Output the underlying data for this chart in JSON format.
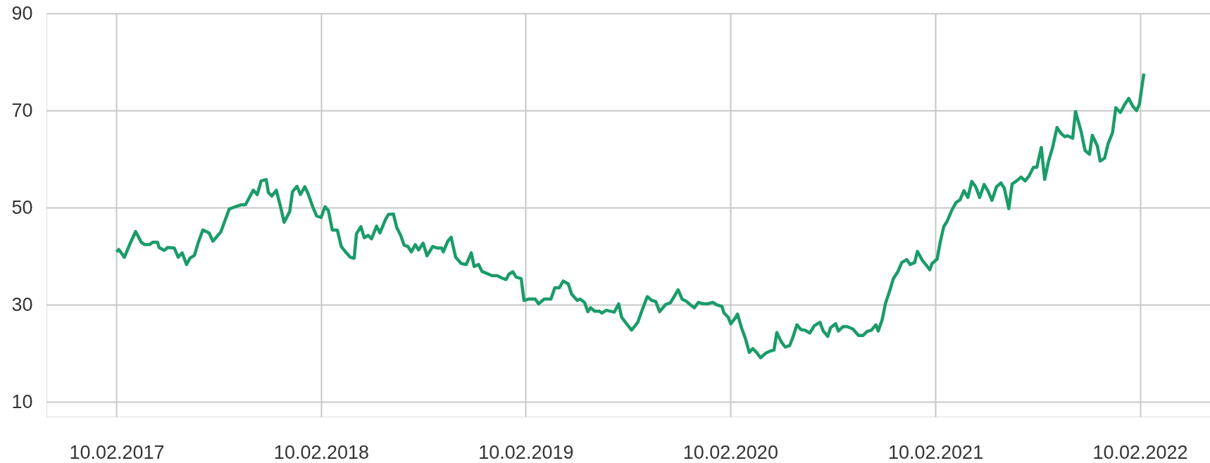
{
  "chart_data": {
    "type": "line",
    "xlim": [
      "2016-10-08",
      "2022-06-15"
    ],
    "xticks": [
      {
        "value": "2017-02-10",
        "label": "10.02.2017"
      },
      {
        "value": "2018-02-10",
        "label": "10.02.2018"
      },
      {
        "value": "2019-02-10",
        "label": "10.02.2019"
      },
      {
        "value": "2020-02-10",
        "label": "10.02.2020"
      },
      {
        "value": "2021-02-10",
        "label": "10.02.2021"
      },
      {
        "value": "2022-02-10",
        "label": "10.02.2022"
      }
    ],
    "ylim": [
      7,
      90
    ],
    "yticks": [
      10,
      30,
      50,
      70,
      90
    ],
    "grid": true,
    "line_style": "solid",
    "marker": "none",
    "x": [
      "2017-02-10",
      "2017-02-14",
      "2017-02-24",
      "2017-03-05",
      "2017-03-16",
      "2017-03-26",
      "2017-04-01",
      "2017-04-10",
      "2017-04-16",
      "2017-04-24",
      "2017-04-27",
      "2017-05-06",
      "2017-05-12",
      "2017-05-24",
      "2017-05-31",
      "2017-06-07",
      "2017-06-15",
      "2017-06-21",
      "2017-06-29",
      "2017-07-06",
      "2017-07-14",
      "2017-07-25",
      "2017-08-01",
      "2017-08-15",
      "2017-08-22",
      "2017-08-30",
      "2017-09-10",
      "2017-09-20",
      "2017-09-28",
      "2017-10-12",
      "2017-10-19",
      "2017-10-26",
      "2017-11-04",
      "2017-11-08",
      "2017-11-14",
      "2017-11-22",
      "2017-11-29",
      "2017-12-06",
      "2017-12-16",
      "2017-12-21",
      "2017-12-29",
      "2018-01-04",
      "2018-01-12",
      "2018-01-18",
      "2018-01-26",
      "2018-02-02",
      "2018-02-10",
      "2018-02-17",
      "2018-02-23",
      "2018-03-02",
      "2018-03-11",
      "2018-03-18",
      "2018-03-27",
      "2018-04-03",
      "2018-04-10",
      "2018-04-14",
      "2018-04-22",
      "2018-04-28",
      "2018-05-05",
      "2018-05-11",
      "2018-05-20",
      "2018-05-26",
      "2018-06-05",
      "2018-06-10",
      "2018-06-19",
      "2018-06-25",
      "2018-07-02",
      "2018-07-08",
      "2018-07-15",
      "2018-07-21",
      "2018-07-28",
      "2018-08-03",
      "2018-08-11",
      "2018-08-18",
      "2018-08-28",
      "2018-09-05",
      "2018-09-13",
      "2018-09-16",
      "2018-09-24",
      "2018-09-30",
      "2018-10-08",
      "2018-10-18",
      "2018-10-27",
      "2018-11-05",
      "2018-11-10",
      "2018-11-18",
      "2018-11-24",
      "2018-12-02",
      "2018-12-12",
      "2018-12-21",
      "2018-12-30",
      "2019-01-06",
      "2019-01-11",
      "2019-01-18",
      "2019-01-24",
      "2019-02-02",
      "2019-02-07",
      "2019-02-16",
      "2019-02-27",
      "2019-03-05",
      "2019-03-15",
      "2019-03-27",
      "2019-04-03",
      "2019-04-11",
      "2019-04-18",
      "2019-04-27",
      "2019-05-03",
      "2019-05-13",
      "2019-05-18",
      "2019-05-26",
      "2019-06-01",
      "2019-06-06",
      "2019-06-13",
      "2019-06-21",
      "2019-06-26",
      "2019-07-04",
      "2019-07-18",
      "2019-07-26",
      "2019-07-31",
      "2019-08-07",
      "2019-08-18",
      "2019-08-29",
      "2019-09-07",
      "2019-09-15",
      "2019-09-23",
      "2019-09-30",
      "2019-10-07",
      "2019-10-18",
      "2019-10-26",
      "2019-11-02",
      "2019-11-09",
      "2019-11-16",
      "2019-11-24",
      "2019-12-01",
      "2019-12-08",
      "2019-12-15",
      "2019-12-24",
      "2019-12-31",
      "2020-01-10",
      "2020-01-17",
      "2020-01-26",
      "2020-01-30",
      "2020-02-06",
      "2020-02-11",
      "2020-02-19",
      "2020-02-23",
      "2020-03-01",
      "2020-03-08",
      "2020-03-15",
      "2020-03-21",
      "2020-03-28",
      "2020-04-04",
      "2020-04-14",
      "2020-04-22",
      "2020-04-28",
      "2020-05-03",
      "2020-05-11",
      "2020-05-18",
      "2020-05-26",
      "2020-06-01",
      "2020-06-08",
      "2020-06-15",
      "2020-06-22",
      "2020-07-01",
      "2020-07-09",
      "2020-07-19",
      "2020-07-25",
      "2020-08-02",
      "2020-08-07",
      "2020-08-16",
      "2020-08-21",
      "2020-08-29",
      "2020-09-06",
      "2020-09-16",
      "2020-09-26",
      "2020-10-04",
      "2020-10-11",
      "2020-10-19",
      "2020-10-27",
      "2020-10-31",
      "2020-11-07",
      "2020-11-13",
      "2020-11-20",
      "2020-11-27",
      "2020-12-05",
      "2020-12-12",
      "2020-12-21",
      "2020-12-27",
      "2021-01-04",
      "2021-01-09",
      "2021-01-18",
      "2021-01-26",
      "2021-01-31",
      "2021-02-04",
      "2021-02-13",
      "2021-02-19",
      "2021-02-25",
      "2021-03-03",
      "2021-03-11",
      "2021-03-19",
      "2021-03-26",
      "2021-04-02",
      "2021-04-09",
      "2021-04-16",
      "2021-04-23",
      "2021-04-30",
      "2021-05-08",
      "2021-05-15",
      "2021-05-22",
      "2021-05-30",
      "2021-06-07",
      "2021-06-13",
      "2021-06-21",
      "2021-06-27",
      "2021-07-05",
      "2021-07-13",
      "2021-07-20",
      "2021-07-27",
      "2021-08-04",
      "2021-08-10",
      "2021-08-18",
      "2021-08-24",
      "2021-08-31",
      "2021-09-07",
      "2021-09-15",
      "2021-09-22",
      "2021-09-29",
      "2021-10-04",
      "2021-10-13",
      "2021-10-18",
      "2021-10-28",
      "2021-11-04",
      "2021-11-12",
      "2021-11-17",
      "2021-11-26",
      "2021-12-01",
      "2021-12-09",
      "2021-12-15",
      "2021-12-23",
      "2021-12-29",
      "2022-01-06",
      "2022-01-13",
      "2022-01-21",
      "2022-01-28",
      "2022-02-04",
      "2022-02-09",
      "2022-02-17"
    ],
    "series": [
      {
        "color": "#1a9c68",
        "values": [
          40.9,
          41.4,
          39.8,
          42.3,
          45.1,
          42.9,
          42.4,
          42.4,
          42.9,
          42.9,
          41.8,
          41.2,
          41.8,
          41.7,
          39.8,
          40.7,
          38.3,
          39.6,
          40.2,
          42.9,
          45.4,
          44.8,
          43.1,
          45.0,
          47.2,
          49.7,
          50.2,
          50.6,
          50.6,
          53.6,
          52.7,
          55.5,
          55.8,
          53.1,
          52.4,
          53.6,
          50.5,
          47.0,
          49.2,
          53.3,
          54.4,
          52.7,
          54.3,
          52.8,
          50.2,
          48.3,
          48.0,
          50.2,
          49.4,
          45.4,
          45.4,
          42.0,
          40.7,
          39.8,
          39.6,
          44.6,
          46.1,
          43.8,
          44.3,
          43.6,
          46.2,
          44.8,
          47.6,
          48.6,
          48.7,
          45.9,
          44.3,
          42.3,
          42.0,
          40.9,
          42.4,
          41.3,
          42.7,
          40.1,
          42.0,
          41.7,
          41.7,
          40.9,
          43.1,
          43.9,
          39.8,
          38.5,
          38.3,
          40.7,
          37.9,
          38.3,
          36.9,
          36.5,
          36.0,
          36.0,
          35.5,
          35.2,
          36.3,
          36.8,
          35.7,
          35.4,
          30.9,
          31.2,
          31.2,
          30.2,
          31.2,
          31.2,
          33.5,
          33.5,
          34.9,
          34.3,
          32.2,
          30.9,
          31.2,
          30.5,
          28.6,
          29.4,
          28.7,
          28.7,
          28.3,
          28.9,
          28.5,
          30.2,
          27.5,
          26.4,
          24.8,
          26.4,
          29.3,
          31.7,
          30.9,
          30.7,
          28.6,
          30.1,
          30.4,
          31.7,
          33.1,
          31.2,
          30.7,
          30.0,
          29.4,
          30.5,
          30.2,
          30.2,
          30.5,
          30.0,
          29.7,
          28.3,
          27.5,
          26.1,
          27.3,
          28.1,
          25.3,
          23.1,
          20.2,
          21.0,
          20.2,
          19.1,
          20.1,
          20.5,
          20.7,
          24.3,
          22.4,
          21.3,
          21.6,
          23.4,
          25.9,
          24.9,
          24.8,
          24.2,
          25.7,
          26.4,
          24.6,
          23.5,
          25.3,
          26.1,
          24.6,
          25.5,
          25.5,
          25.0,
          23.7,
          23.7,
          24.5,
          24.8,
          25.9,
          24.6,
          26.9,
          30.3,
          32.7,
          35.4,
          36.8,
          38.7,
          39.3,
          38.3,
          38.7,
          41.0,
          39.1,
          38.0,
          37.2,
          38.5,
          39.4,
          43.1,
          46.1,
          47.2,
          49.4,
          51.1,
          51.6,
          53.5,
          52.1,
          55.4,
          54.3,
          52.1,
          54.8,
          53.4,
          51.5,
          54.3,
          55.1,
          54.0,
          49.8,
          54.9,
          55.5,
          56.3,
          55.5,
          56.5,
          58.3,
          58.3,
          62.4,
          55.8,
          59.6,
          62.3,
          66.5,
          65.3,
          64.6,
          64.8,
          64.3,
          69.8,
          65.7,
          61.8,
          61.0,
          64.9,
          62.7,
          59.6,
          60.2,
          63.1,
          65.4,
          70.6,
          69.6,
          71.1,
          72.5,
          70.9,
          70.0,
          71.3,
          77.6
        ]
      }
    ]
  }
}
